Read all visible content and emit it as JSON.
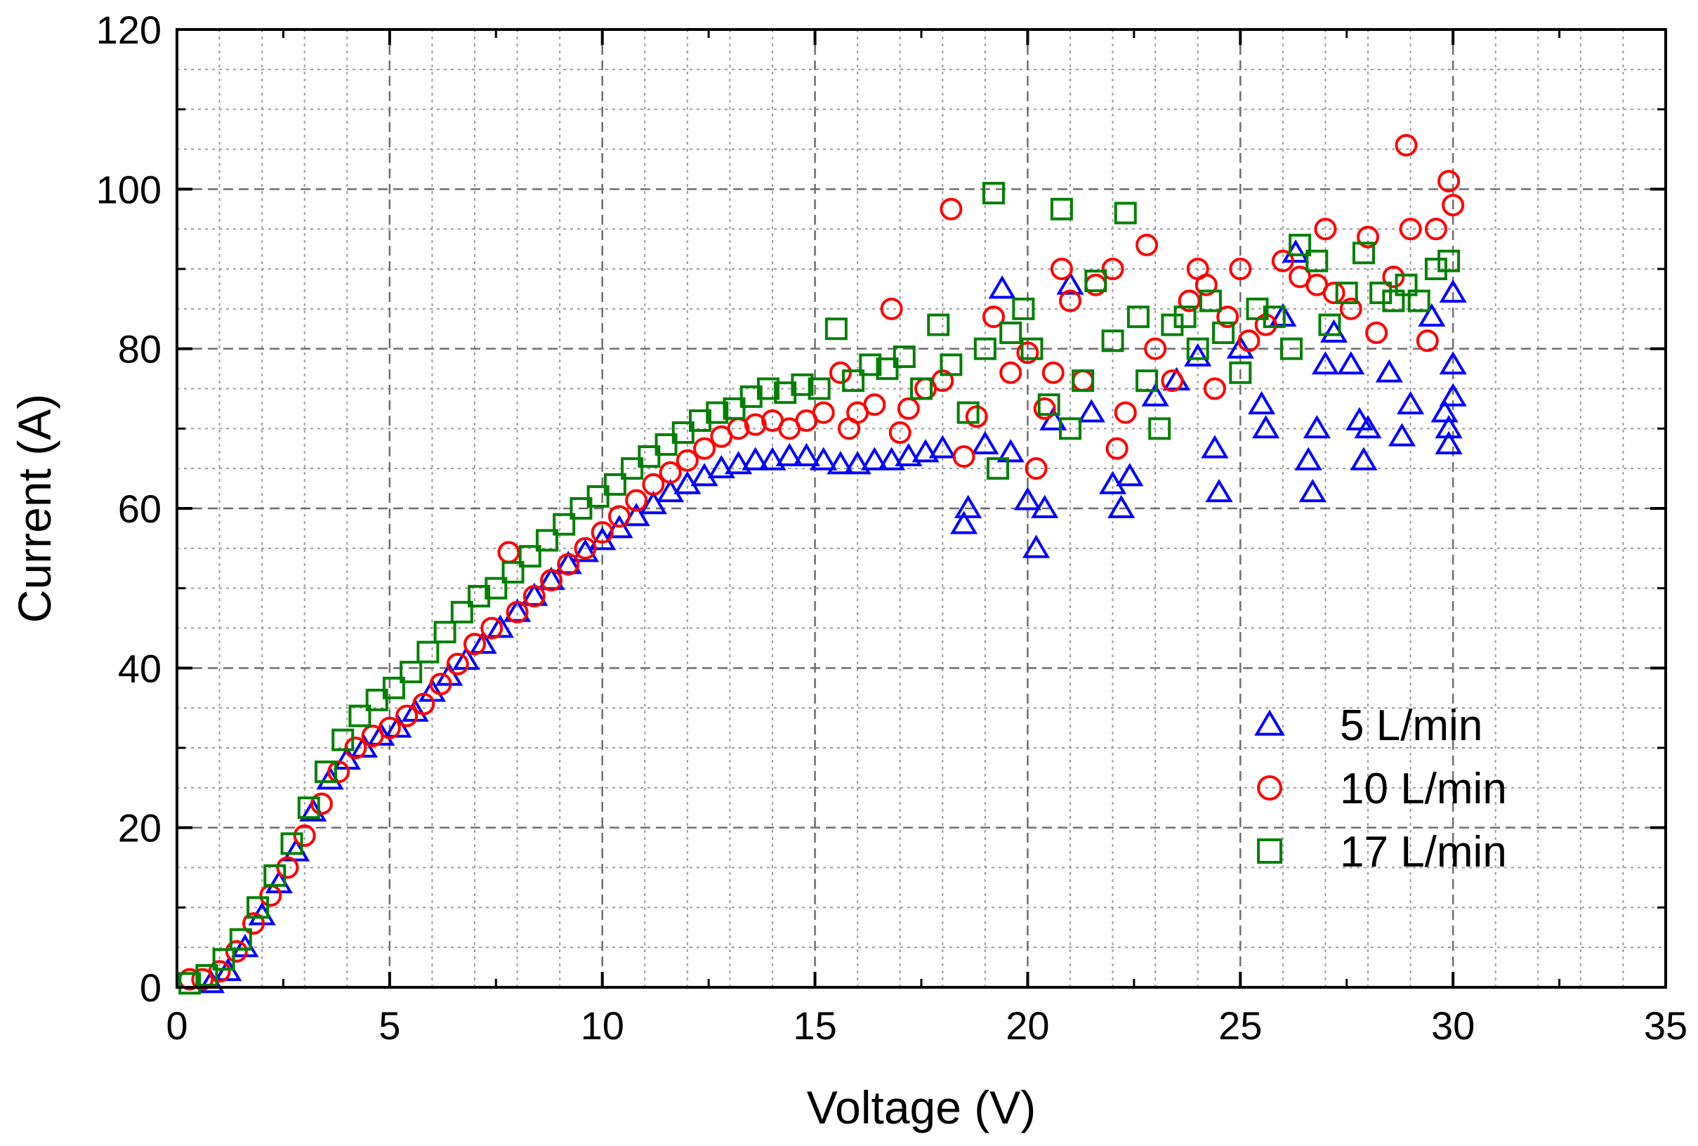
{
  "chart_data": {
    "type": "scatter",
    "title": "",
    "xlabel": "Voltage (V)",
    "ylabel": "Current (A)",
    "xlim": [
      0,
      35
    ],
    "ylim": [
      0,
      120
    ],
    "xticks": [
      0,
      5,
      10,
      15,
      20,
      25,
      30,
      35
    ],
    "yticks": [
      0,
      20,
      40,
      60,
      80,
      100,
      120
    ],
    "x_tick_labels": [
      "0",
      "5",
      "10",
      "15",
      "20",
      "25",
      "30",
      "35"
    ],
    "y_tick_labels": [
      "0",
      "20",
      "40",
      "60",
      "80",
      "100",
      "120"
    ],
    "grid": "on (major dashed, minor dotted)",
    "legend_position": "bottom-right",
    "series": [
      {
        "name": "5 L/min",
        "marker": "triangle",
        "color": "#0000ff",
        "points": [
          [
            0.8,
            0.5
          ],
          [
            1.2,
            2
          ],
          [
            1.6,
            5
          ],
          [
            2,
            9
          ],
          [
            2.4,
            13
          ],
          [
            2.8,
            17
          ],
          [
            3.2,
            22
          ],
          [
            3.6,
            26
          ],
          [
            4,
            28.5
          ],
          [
            4.4,
            30
          ],
          [
            4.8,
            31.5
          ],
          [
            5.2,
            32.5
          ],
          [
            5.6,
            34.5
          ],
          [
            6,
            37
          ],
          [
            6.4,
            39
          ],
          [
            6.8,
            41
          ],
          [
            7.2,
            43
          ],
          [
            7.6,
            45
          ],
          [
            8,
            47
          ],
          [
            8.4,
            49
          ],
          [
            8.8,
            51
          ],
          [
            9.2,
            53
          ],
          [
            9.6,
            54.5
          ],
          [
            10,
            56
          ],
          [
            10.4,
            57.5
          ],
          [
            10.8,
            59
          ],
          [
            11.2,
            60.5
          ],
          [
            11.6,
            62
          ],
          [
            12,
            63
          ],
          [
            12.4,
            64
          ],
          [
            12.8,
            65
          ],
          [
            13.2,
            65.5
          ],
          [
            13.6,
            66
          ],
          [
            14,
            66
          ],
          [
            14.4,
            66.5
          ],
          [
            14.8,
            66.5
          ],
          [
            15.2,
            66
          ],
          [
            15.6,
            65.5
          ],
          [
            16,
            65.5
          ],
          [
            16.4,
            66
          ],
          [
            16.8,
            66
          ],
          [
            17.2,
            66.5
          ],
          [
            17.6,
            67
          ],
          [
            18,
            67.5
          ],
          [
            18.5,
            58
          ],
          [
            18.6,
            60
          ],
          [
            19,
            68
          ],
          [
            19.4,
            87.5
          ],
          [
            19.6,
            67
          ],
          [
            20,
            61
          ],
          [
            20.2,
            55
          ],
          [
            20.4,
            60
          ],
          [
            20.6,
            71
          ],
          [
            21,
            88
          ],
          [
            21.5,
            72
          ],
          [
            22,
            63
          ],
          [
            22.2,
            60
          ],
          [
            22.4,
            64
          ],
          [
            23,
            74
          ],
          [
            23.5,
            76
          ],
          [
            24,
            79
          ],
          [
            24.4,
            67.5
          ],
          [
            24.5,
            62
          ],
          [
            25,
            80
          ],
          [
            25.5,
            73
          ],
          [
            25.6,
            70
          ],
          [
            26,
            84
          ],
          [
            26.3,
            92
          ],
          [
            26.6,
            66
          ],
          [
            26.7,
            62
          ],
          [
            26.8,
            70
          ],
          [
            27,
            78
          ],
          [
            27.2,
            82
          ],
          [
            27.6,
            78
          ],
          [
            27.8,
            71
          ],
          [
            27.9,
            66
          ],
          [
            28,
            70
          ],
          [
            28.5,
            77
          ],
          [
            28.8,
            69
          ],
          [
            29,
            73
          ],
          [
            29.5,
            84
          ],
          [
            29.8,
            72
          ],
          [
            29.9,
            68
          ],
          [
            30,
            78
          ],
          [
            30,
            87
          ],
          [
            30,
            74
          ],
          [
            29.9,
            70
          ]
        ]
      },
      {
        "name": "10 L/min",
        "marker": "circle",
        "color": "#ff0000",
        "points": [
          [
            0.3,
            1
          ],
          [
            0.6,
            1
          ],
          [
            1,
            2
          ],
          [
            1.4,
            4.5
          ],
          [
            1.8,
            8
          ],
          [
            2.2,
            11.5
          ],
          [
            2.6,
            15
          ],
          [
            3,
            19
          ],
          [
            3.4,
            23
          ],
          [
            3.8,
            27
          ],
          [
            4.2,
            30
          ],
          [
            4.6,
            31.5
          ],
          [
            5,
            32.5
          ],
          [
            5.4,
            34
          ],
          [
            5.8,
            35.5
          ],
          [
            6.2,
            38
          ],
          [
            6.6,
            40.5
          ],
          [
            7,
            43
          ],
          [
            7.4,
            45
          ],
          [
            7.8,
            54.5
          ],
          [
            8,
            47
          ],
          [
            8.4,
            49
          ],
          [
            8.8,
            51
          ],
          [
            9.2,
            53
          ],
          [
            9.6,
            55
          ],
          [
            10,
            57
          ],
          [
            10.4,
            59
          ],
          [
            10.8,
            61
          ],
          [
            11.2,
            63
          ],
          [
            11.6,
            64.5
          ],
          [
            12,
            66
          ],
          [
            12.4,
            67.5
          ],
          [
            12.8,
            69
          ],
          [
            13.2,
            70
          ],
          [
            13.6,
            70.5
          ],
          [
            14,
            71
          ],
          [
            14.4,
            70
          ],
          [
            14.8,
            71
          ],
          [
            15.2,
            72
          ],
          [
            15.6,
            77
          ],
          [
            15.8,
            70
          ],
          [
            16,
            72
          ],
          [
            16.4,
            73
          ],
          [
            16.8,
            85
          ],
          [
            17,
            69.5
          ],
          [
            17.2,
            72.5
          ],
          [
            17.6,
            75
          ],
          [
            18,
            76
          ],
          [
            18.2,
            97.5
          ],
          [
            18.5,
            66.5
          ],
          [
            18.8,
            71.5
          ],
          [
            19.2,
            84
          ],
          [
            19.6,
            77
          ],
          [
            20,
            79.5
          ],
          [
            20.2,
            65
          ],
          [
            20.4,
            72.5
          ],
          [
            20.6,
            77
          ],
          [
            20.8,
            90
          ],
          [
            21,
            86
          ],
          [
            21.3,
            76
          ],
          [
            21.6,
            88
          ],
          [
            22,
            90
          ],
          [
            22.1,
            67.5
          ],
          [
            22.3,
            72
          ],
          [
            22.8,
            93
          ],
          [
            23,
            80
          ],
          [
            23.4,
            76
          ],
          [
            23.8,
            86
          ],
          [
            24,
            90
          ],
          [
            24.2,
            88
          ],
          [
            24.4,
            75
          ],
          [
            24.7,
            84
          ],
          [
            25,
            90
          ],
          [
            25.2,
            81
          ],
          [
            25.6,
            83
          ],
          [
            26,
            91
          ],
          [
            26.4,
            89
          ],
          [
            26.8,
            88
          ],
          [
            27,
            95
          ],
          [
            27.2,
            87
          ],
          [
            27.6,
            85
          ],
          [
            28,
            94
          ],
          [
            28.2,
            82
          ],
          [
            28.6,
            89
          ],
          [
            28.9,
            105.5
          ],
          [
            29,
            95
          ],
          [
            29.4,
            81
          ],
          [
            29.6,
            95
          ],
          [
            29.9,
            101
          ],
          [
            30,
            98
          ]
        ]
      },
      {
        "name": "17 L/min",
        "marker": "square",
        "color": "#008000",
        "points": [
          [
            0.3,
            0.5
          ],
          [
            0.7,
            1.5
          ],
          [
            1.1,
            3.5
          ],
          [
            1.5,
            6
          ],
          [
            1.9,
            10
          ],
          [
            2.3,
            14
          ],
          [
            2.7,
            18
          ],
          [
            3.1,
            22.5
          ],
          [
            3.5,
            27
          ],
          [
            3.9,
            31
          ],
          [
            4.3,
            34
          ],
          [
            4.7,
            36
          ],
          [
            5.1,
            37.5
          ],
          [
            5.5,
            39.5
          ],
          [
            5.9,
            42
          ],
          [
            6.3,
            44.5
          ],
          [
            6.7,
            47
          ],
          [
            7.1,
            49
          ],
          [
            7.5,
            50
          ],
          [
            7.9,
            52
          ],
          [
            8.3,
            54
          ],
          [
            8.7,
            56
          ],
          [
            9.1,
            58
          ],
          [
            9.5,
            60
          ],
          [
            9.9,
            61.5
          ],
          [
            10.3,
            63
          ],
          [
            10.7,
            65
          ],
          [
            11.1,
            66.5
          ],
          [
            11.5,
            68
          ],
          [
            11.9,
            69.5
          ],
          [
            12.3,
            71
          ],
          [
            12.7,
            72
          ],
          [
            13.1,
            72.5
          ],
          [
            13.5,
            74
          ],
          [
            13.9,
            75
          ],
          [
            14.3,
            74.5
          ],
          [
            14.7,
            75.5
          ],
          [
            15.1,
            75
          ],
          [
            15.5,
            82.5
          ],
          [
            15.9,
            76
          ],
          [
            16.3,
            78
          ],
          [
            16.7,
            77.5
          ],
          [
            17.1,
            79
          ],
          [
            17.5,
            75
          ],
          [
            17.9,
            83
          ],
          [
            18.2,
            78
          ],
          [
            18.6,
            72
          ],
          [
            19,
            80
          ],
          [
            19.2,
            99.5
          ],
          [
            19.3,
            65
          ],
          [
            19.6,
            82
          ],
          [
            19.9,
            85
          ],
          [
            20.1,
            80
          ],
          [
            20.5,
            73
          ],
          [
            20.8,
            97.5
          ],
          [
            21,
            70
          ],
          [
            21.3,
            76
          ],
          [
            21.6,
            88.5
          ],
          [
            22,
            81
          ],
          [
            22.3,
            97
          ],
          [
            22.6,
            84
          ],
          [
            22.8,
            76
          ],
          [
            23.1,
            70
          ],
          [
            23.4,
            83
          ],
          [
            23.7,
            84
          ],
          [
            24,
            80
          ],
          [
            24.3,
            86
          ],
          [
            24.6,
            82
          ],
          [
            25,
            77
          ],
          [
            25.4,
            85
          ],
          [
            25.8,
            84
          ],
          [
            26.2,
            80
          ],
          [
            26.4,
            93
          ],
          [
            26.8,
            91
          ],
          [
            27.1,
            83
          ],
          [
            27.5,
            87
          ],
          [
            27.9,
            92
          ],
          [
            28.3,
            87
          ],
          [
            28.6,
            86
          ],
          [
            28.9,
            88
          ],
          [
            29.2,
            86
          ],
          [
            29.6,
            90
          ],
          [
            29.9,
            91
          ]
        ]
      }
    ]
  }
}
